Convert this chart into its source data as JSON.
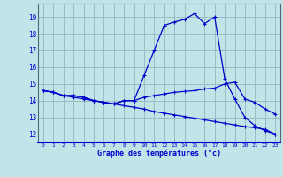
{
  "xlabel": "Graphe des températures (°c)",
  "xlim": [
    -0.5,
    23.5
  ],
  "ylim": [
    11.5,
    19.8
  ],
  "yticks": [
    12,
    13,
    14,
    15,
    16,
    17,
    18,
    19
  ],
  "xticks": [
    0,
    1,
    2,
    3,
    4,
    5,
    6,
    7,
    8,
    9,
    10,
    11,
    12,
    13,
    14,
    15,
    16,
    17,
    18,
    19,
    20,
    21,
    22,
    23
  ],
  "background_color": "#c0e4e8",
  "grid_color": "#90b8c0",
  "line_color": "#0000cc",
  "line1": [
    14.6,
    14.5,
    14.3,
    14.3,
    14.2,
    14.0,
    13.9,
    13.8,
    14.0,
    14.0,
    15.5,
    17.0,
    18.5,
    18.7,
    18.85,
    19.2,
    18.6,
    19.0,
    15.3,
    14.1,
    13.0,
    12.5,
    12.2,
    12.0
  ],
  "line2": [
    14.6,
    14.5,
    14.3,
    14.3,
    14.2,
    14.0,
    13.9,
    13.8,
    14.0,
    14.0,
    14.2,
    14.3,
    14.4,
    14.5,
    14.55,
    14.6,
    14.7,
    14.75,
    15.0,
    15.1,
    14.1,
    13.9,
    13.5,
    13.2
  ],
  "line3": [
    14.6,
    14.5,
    14.3,
    14.2,
    14.1,
    14.0,
    13.9,
    13.8,
    13.7,
    13.6,
    13.5,
    13.35,
    13.25,
    13.15,
    13.05,
    12.95,
    12.85,
    12.75,
    12.65,
    12.55,
    12.45,
    12.38,
    12.28,
    12.0
  ]
}
